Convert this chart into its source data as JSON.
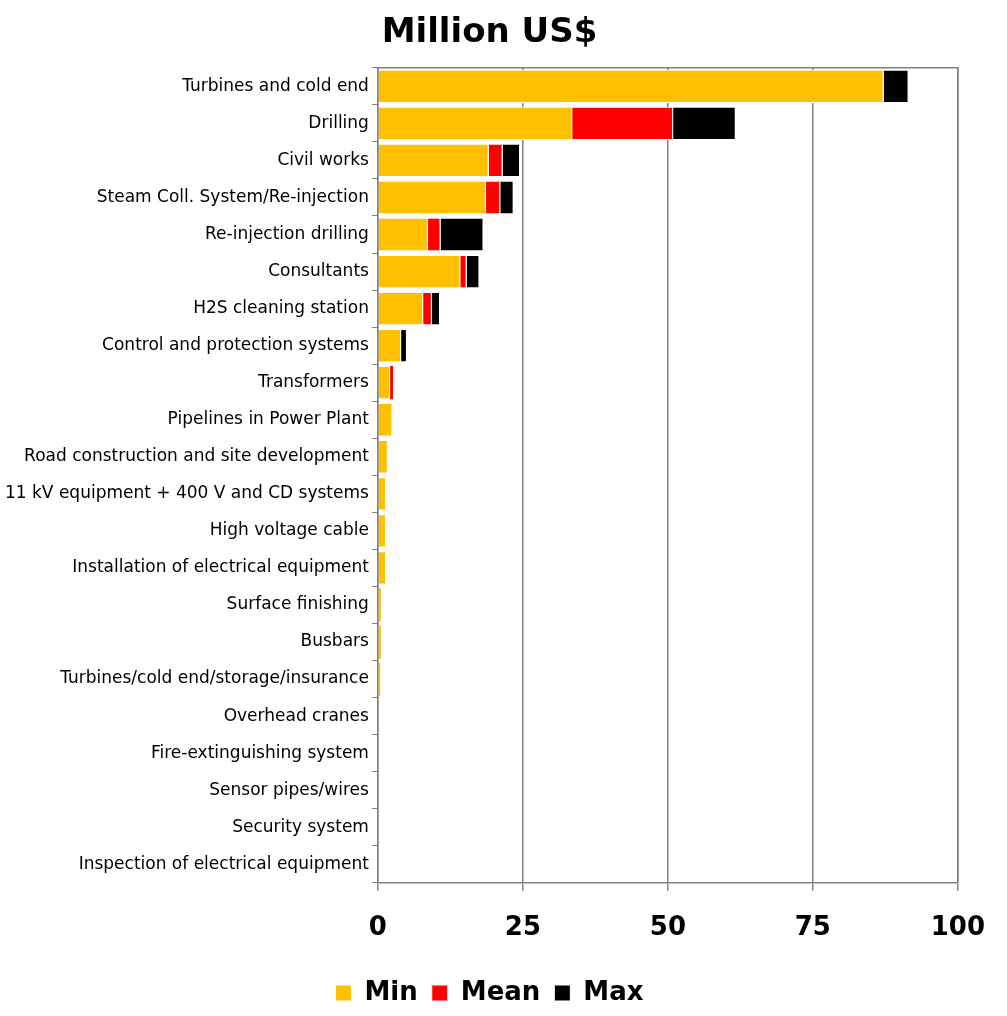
{
  "chart_data": {
    "type": "bar",
    "orientation": "horizontal",
    "stacked": true,
    "title": "Million US$",
    "categories": [
      "Turbines and cold end",
      "Drilling",
      "Civil works",
      "Steam Coll. System/Re-injection",
      "Re-injection drilling",
      "Consultants",
      "H2S cleaning station",
      "Control and protection systems",
      "Transformers",
      "Pipelines in Power Plant",
      "Road construction and site development",
      "11 kV equipment + 400 V and CD systems",
      "High voltage cable",
      "Installation of electrical equipment",
      "Surface finishing",
      "Busbars",
      "Turbines/cold end/storage/insurance",
      "Overhead cranes",
      "Fire-extinguishing system",
      "Sensor pipes/wires",
      "Security system",
      "Inspection of electrical equipment"
    ],
    "series": [
      {
        "name": "Min",
        "color": "#ffc000",
        "values": [
          87.2,
          33.5,
          19.1,
          18.6,
          8.6,
          14.2,
          7.8,
          4,
          2.1,
          2.5,
          1.7,
          1.4,
          1.4,
          1.4,
          0.5,
          0.5,
          0.4,
          null,
          null,
          null,
          null,
          null
        ]
      },
      {
        "name": "Mean",
        "color": "#ff0000",
        "values": [
          null,
          17.4,
          2.4,
          2.5,
          2.2,
          1.1,
          1.5,
          null,
          0.5,
          null,
          null,
          null,
          null,
          null,
          null,
          null,
          null,
          null,
          null,
          null,
          null,
          null
        ]
      },
      {
        "name": "Max",
        "color": "#000000",
        "values": [
          4.3,
          10.8,
          3,
          2.3,
          7.4,
          2.2,
          1.4,
          1,
          null,
          null,
          null,
          null,
          null,
          null,
          null,
          null,
          null,
          null,
          null,
          null,
          null,
          null
        ]
      }
    ],
    "xlim": [
      0,
      100
    ],
    "xticks": [
      0,
      25,
      50,
      75,
      100
    ],
    "grid": "x",
    "legend": "bottom"
  }
}
